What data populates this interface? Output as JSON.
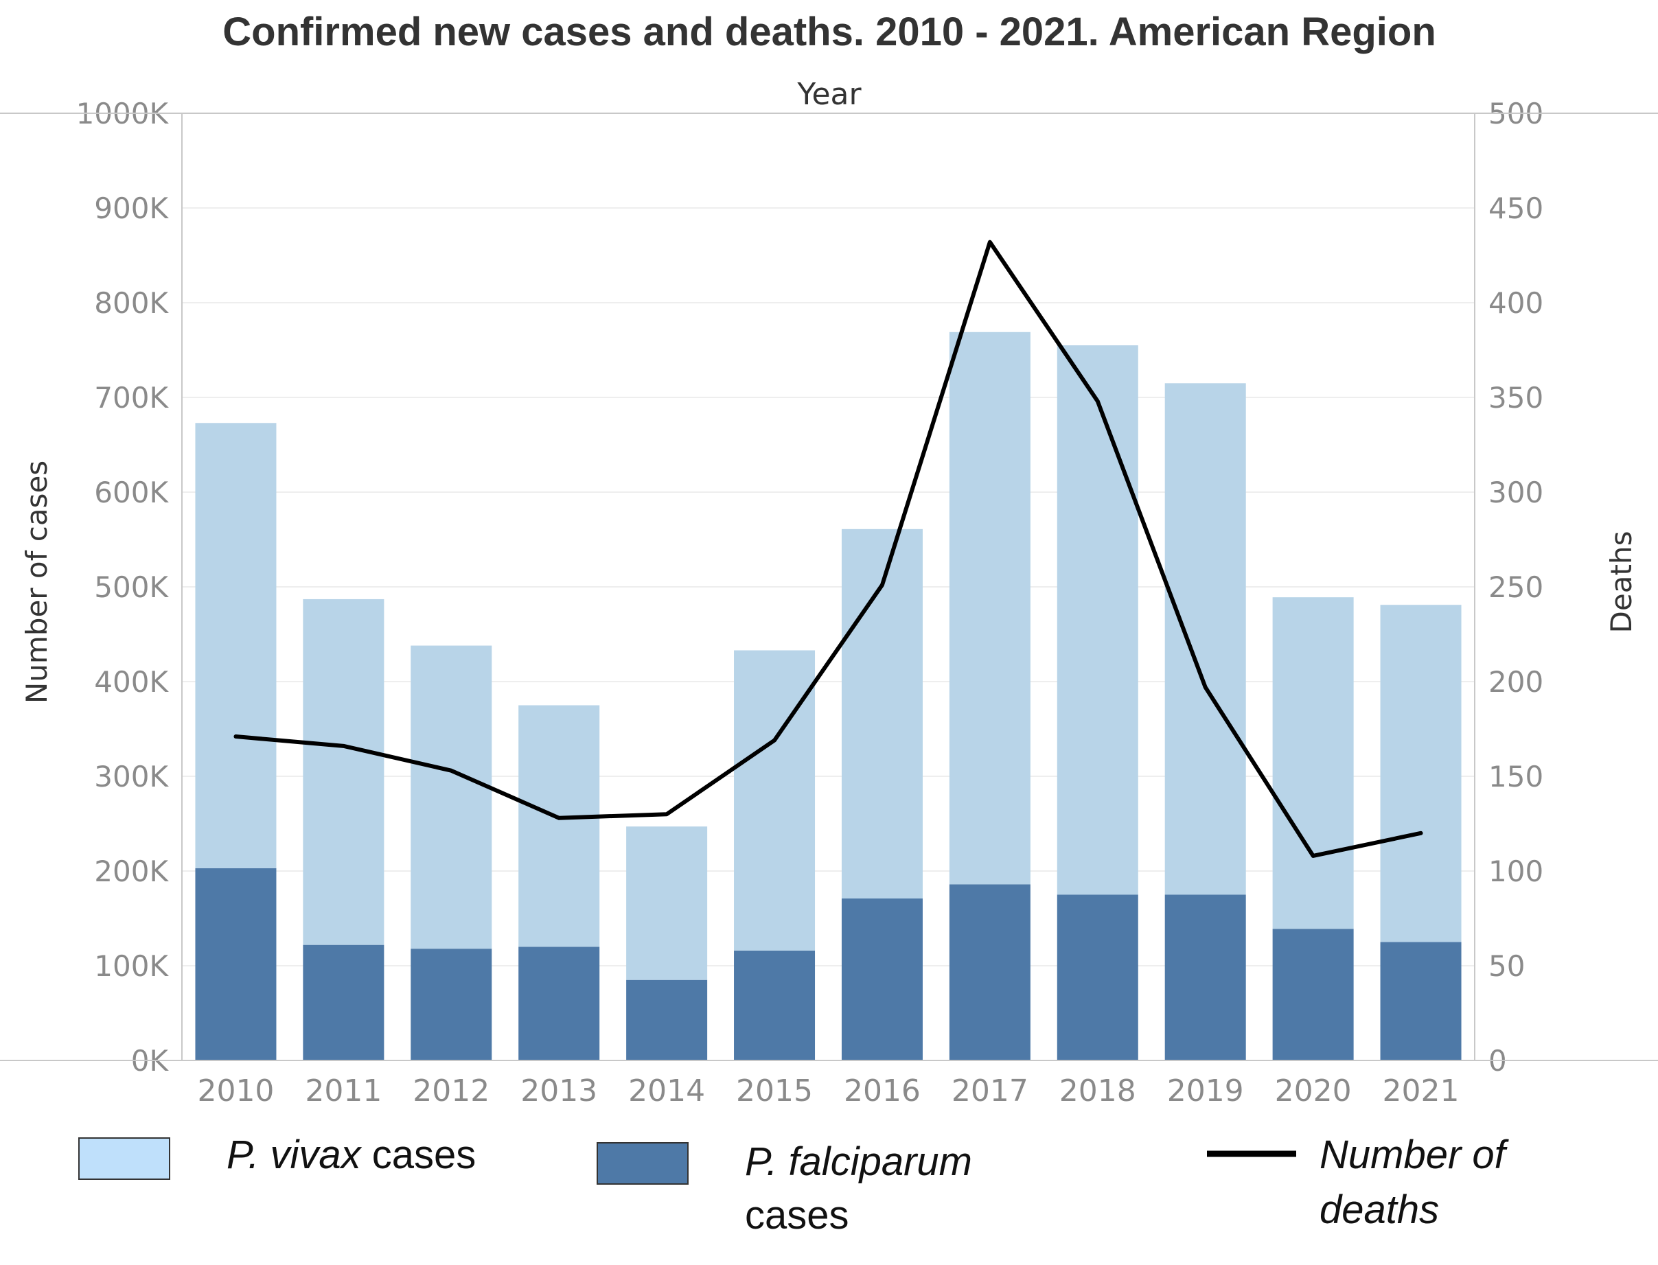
{
  "chart_data": {
    "type": "bar",
    "title": "Confirmed new cases and deaths. 2010 - 2021.  American Region",
    "xlabel": "Year",
    "ylabel": "Number of cases",
    "y2label": "Deaths",
    "categories": [
      "2010",
      "2011",
      "2012",
      "2013",
      "2014",
      "2015",
      "2016",
      "2017",
      "2018",
      "2019",
      "2020",
      "2021"
    ],
    "stacked": true,
    "ylim": [
      0,
      1000000
    ],
    "y2lim": [
      0,
      500
    ],
    "yticks": [
      "0K",
      "100K",
      "200K",
      "300K",
      "400K",
      "500K",
      "600K",
      "700K",
      "800K",
      "900K",
      "1000K"
    ],
    "y2ticks": [
      "0",
      "50",
      "100",
      "150",
      "200",
      "250",
      "300",
      "350",
      "400",
      "450",
      "500"
    ],
    "grid": true,
    "legend_position": "bottom",
    "series": [
      {
        "key": "vivax",
        "values": [
          470000,
          365000,
          320000,
          255000,
          162000,
          317000,
          390000,
          583000,
          580000,
          540000,
          350000,
          356000
        ],
        "color": "#b8d4e8"
      },
      {
        "key": "falciparum",
        "values": [
          203000,
          122000,
          118000,
          120000,
          85000,
          116000,
          171000,
          186000,
          175000,
          175000,
          139000,
          125000
        ],
        "color": "#4e79a7"
      },
      {
        "key": "deaths",
        "type": "line",
        "axis": "right",
        "values": [
          171,
          166,
          153,
          128,
          130,
          169,
          251,
          432,
          348,
          197,
          108,
          120
        ],
        "color": "#000000"
      }
    ]
  },
  "legend": {
    "vivax_italic": "P. vivax",
    "vivax_rest": " cases",
    "falciparum_italic": "P. falciparum",
    "falciparum_rest": "cases",
    "deaths_line1": "Number of",
    "deaths_line2": "deaths"
  }
}
